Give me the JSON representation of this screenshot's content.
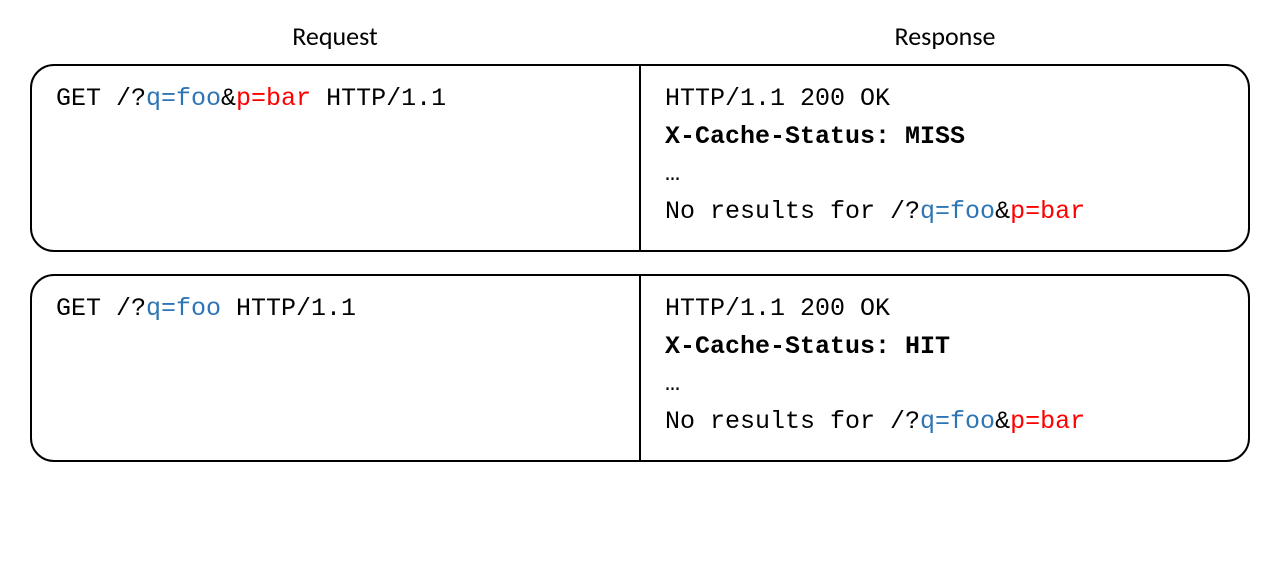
{
  "colors": {
    "text": "#000000",
    "blue": "#2e75b6",
    "red": "#ff0000",
    "border": "#000000",
    "background": "#ffffff"
  },
  "typography": {
    "header_fontsize": 26,
    "body_fontsize": 25,
    "header_family": "sans-serif",
    "body_family": "monospace"
  },
  "layout": {
    "border_radius": 24,
    "border_width": 2,
    "columns": 2
  },
  "headers": {
    "request": "Request",
    "response": "Response"
  },
  "rows": [
    {
      "request": {
        "method": "GET",
        "path_prefix": "/?",
        "params": [
          {
            "text": "q=foo",
            "color": "blue"
          },
          {
            "text": "&",
            "color": "black"
          },
          {
            "text": "p=bar",
            "color": "red"
          }
        ],
        "suffix": " HTTP/1.1"
      },
      "response": {
        "status": "HTTP/1.1 200 OK",
        "cache_header": "X-Cache-Status: MISS",
        "ellipsis": "…",
        "body_prefix": "No results for /?",
        "body_params": [
          {
            "text": "q=foo",
            "color": "blue"
          },
          {
            "text": "&",
            "color": "black"
          },
          {
            "text": "p=bar",
            "color": "red"
          }
        ]
      }
    },
    {
      "request": {
        "method": "GET",
        "path_prefix": "/?",
        "params": [
          {
            "text": "q=foo",
            "color": "blue"
          }
        ],
        "suffix": " HTTP/1.1"
      },
      "response": {
        "status": "HTTP/1.1 200 OK",
        "cache_header": "X-Cache-Status: HIT",
        "ellipsis": "…",
        "body_prefix": "No results for /?",
        "body_params": [
          {
            "text": "q=foo",
            "color": "blue"
          },
          {
            "text": "&",
            "color": "black"
          },
          {
            "text": "p=bar",
            "color": "red"
          }
        ]
      }
    }
  ]
}
